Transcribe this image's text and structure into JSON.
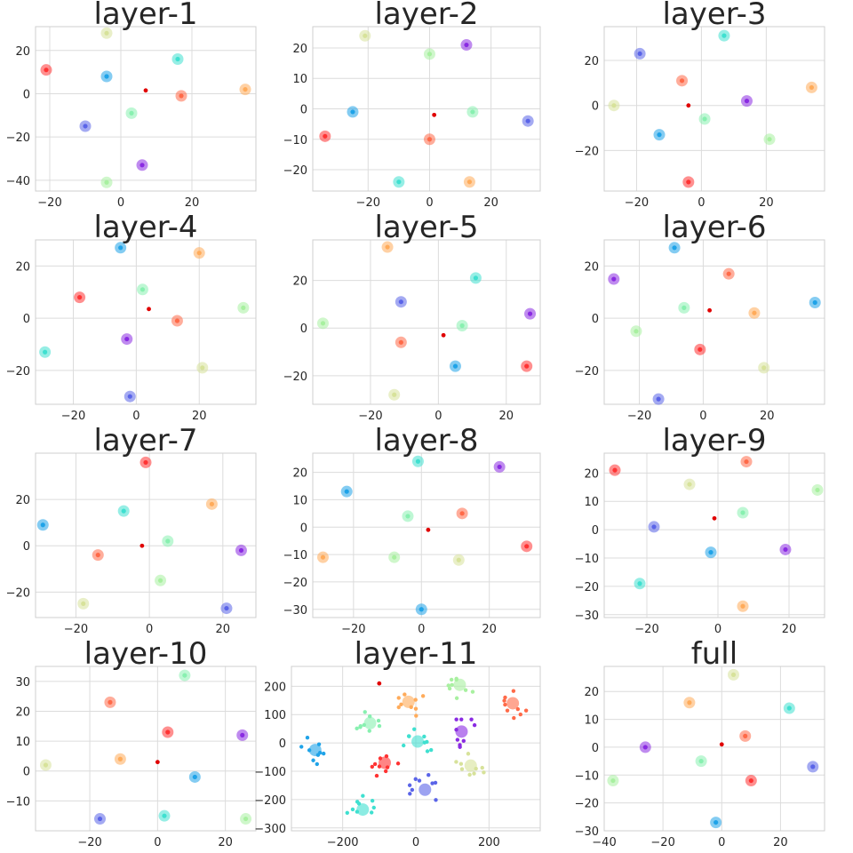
{
  "figure": {
    "description_type": "grid of scatter subplots",
    "rows": 4,
    "cols": 3
  },
  "chart_data": [
    {
      "type": "scatter",
      "title": "layer-1",
      "xlim": [
        -24,
        38
      ],
      "ylim": [
        -45,
        31
      ],
      "xticks": [
        -20,
        0,
        20
      ],
      "yticks": [
        20,
        0,
        -20,
        -40
      ],
      "grid": true,
      "points": [
        {
          "x": -21,
          "y": 11,
          "color": "#ff3333"
        },
        {
          "x": -4,
          "y": 28,
          "color": "#d7e29a"
        },
        {
          "x": -4,
          "y": 8,
          "color": "#1fa3e8"
        },
        {
          "x": 16,
          "y": 16,
          "color": "#3fe0d0"
        },
        {
          "x": 35,
          "y": 2,
          "color": "#ffab5a"
        },
        {
          "x": 17,
          "y": -1,
          "color": "#ff6a48"
        },
        {
          "x": 3,
          "y": -9,
          "color": "#88f0b0"
        },
        {
          "x": -10,
          "y": -15,
          "color": "#5a64e8"
        },
        {
          "x": 6,
          "y": -33,
          "color": "#8a2be2"
        },
        {
          "x": -4,
          "y": -41,
          "color": "#a8f0a0"
        }
      ],
      "center": {
        "x": 7,
        "y": 1.5
      }
    },
    {
      "type": "scatter",
      "title": "layer-2",
      "xlim": [
        -38,
        36
      ],
      "ylim": [
        -27,
        27
      ],
      "xticks": [
        -20,
        0,
        20
      ],
      "yticks": [
        20,
        10,
        0,
        -10,
        -20
      ],
      "grid": true,
      "points": [
        {
          "x": -21,
          "y": 24,
          "color": "#d7e29a"
        },
        {
          "x": 12,
          "y": 21,
          "color": "#8a2be2"
        },
        {
          "x": 0,
          "y": 18,
          "color": "#a8f0a0"
        },
        {
          "x": -25,
          "y": -1,
          "color": "#1fa3e8"
        },
        {
          "x": 14,
          "y": -1,
          "color": "#88f0b0"
        },
        {
          "x": 32,
          "y": -4,
          "color": "#5a64e8"
        },
        {
          "x": -34,
          "y": -9,
          "color": "#ff3333"
        },
        {
          "x": 0,
          "y": -10,
          "color": "#ff6a48"
        },
        {
          "x": -10,
          "y": -24,
          "color": "#3fe0d0"
        },
        {
          "x": 13,
          "y": -24,
          "color": "#ffab5a"
        }
      ],
      "center": {
        "x": 1.5,
        "y": -2
      }
    },
    {
      "type": "scatter",
      "title": "layer-3",
      "xlim": [
        -30,
        38
      ],
      "ylim": [
        -38,
        35
      ],
      "xticks": [
        -20,
        0,
        20
      ],
      "yticks": [
        20,
        0,
        -20
      ],
      "grid": true,
      "points": [
        {
          "x": 7,
          "y": 31,
          "color": "#3fe0d0"
        },
        {
          "x": -19,
          "y": 23,
          "color": "#5a64e8"
        },
        {
          "x": -6,
          "y": 11,
          "color": "#ff6a48"
        },
        {
          "x": 34,
          "y": 8,
          "color": "#ffab5a"
        },
        {
          "x": 14,
          "y": 2,
          "color": "#8a2be2"
        },
        {
          "x": -27,
          "y": 0,
          "color": "#d7e29a"
        },
        {
          "x": 1,
          "y": -6,
          "color": "#88f0b0"
        },
        {
          "x": -13,
          "y": -13,
          "color": "#1fa3e8"
        },
        {
          "x": 21,
          "y": -15,
          "color": "#a8f0a0"
        },
        {
          "x": -4,
          "y": -34,
          "color": "#ff3333"
        }
      ],
      "center": {
        "x": -4,
        "y": 0
      }
    },
    {
      "type": "scatter",
      "title": "layer-4",
      "xlim": [
        -32,
        38
      ],
      "ylim": [
        -33,
        30
      ],
      "xticks": [
        -20,
        0,
        20
      ],
      "yticks": [
        20,
        0,
        -20
      ],
      "grid": true,
      "points": [
        {
          "x": -5,
          "y": 27,
          "color": "#1fa3e8"
        },
        {
          "x": 20,
          "y": 25,
          "color": "#ffab5a"
        },
        {
          "x": 2,
          "y": 11,
          "color": "#88f0b0"
        },
        {
          "x": -18,
          "y": 8,
          "color": "#ff3333"
        },
        {
          "x": 34,
          "y": 4,
          "color": "#a8f0a0"
        },
        {
          "x": 13,
          "y": -1,
          "color": "#ff6a48"
        },
        {
          "x": -3,
          "y": -8,
          "color": "#8a2be2"
        },
        {
          "x": -29,
          "y": -13,
          "color": "#3fe0d0"
        },
        {
          "x": 21,
          "y": -19,
          "color": "#d7e29a"
        },
        {
          "x": -2,
          "y": -30,
          "color": "#5a64e8"
        }
      ],
      "center": {
        "x": 4,
        "y": 3.5
      }
    },
    {
      "type": "scatter",
      "title": "layer-5",
      "xlim": [
        -37,
        30
      ],
      "ylim": [
        -32,
        37
      ],
      "xticks": [
        -20,
        0,
        20
      ],
      "yticks": [
        20,
        0,
        -20
      ],
      "grid": true,
      "points": [
        {
          "x": -15,
          "y": 34,
          "color": "#ffab5a"
        },
        {
          "x": 11,
          "y": 21,
          "color": "#3fe0d0"
        },
        {
          "x": -11,
          "y": 11,
          "color": "#5a64e8"
        },
        {
          "x": 27,
          "y": 6,
          "color": "#8a2be2"
        },
        {
          "x": -34,
          "y": 2,
          "color": "#a8f0a0"
        },
        {
          "x": 7,
          "y": 1,
          "color": "#88f0b0"
        },
        {
          "x": -11,
          "y": -6,
          "color": "#ff6a48"
        },
        {
          "x": 5,
          "y": -16,
          "color": "#1fa3e8"
        },
        {
          "x": 26,
          "y": -16,
          "color": "#ff3333"
        },
        {
          "x": -13,
          "y": -28,
          "color": "#d7e29a"
        }
      ],
      "center": {
        "x": 1.5,
        "y": -3
      }
    },
    {
      "type": "scatter",
      "title": "layer-6",
      "xlim": [
        -31,
        38
      ],
      "ylim": [
        -33,
        30
      ],
      "xticks": [
        -20,
        0,
        20
      ],
      "yticks": [
        20,
        0,
        -20
      ],
      "grid": true,
      "points": [
        {
          "x": -9,
          "y": 27,
          "color": "#1fa3e8"
        },
        {
          "x": 8,
          "y": 17,
          "color": "#ff6a48"
        },
        {
          "x": -28,
          "y": 15,
          "color": "#8a2be2"
        },
        {
          "x": -6,
          "y": 4,
          "color": "#88f0b0"
        },
        {
          "x": 16,
          "y": 2,
          "color": "#ffab5a"
        },
        {
          "x": 35,
          "y": 6,
          "color": "#1fa3e8"
        },
        {
          "x": -21,
          "y": -5,
          "color": "#a8f0a0"
        },
        {
          "x": -1,
          "y": -12,
          "color": "#ff3333"
        },
        {
          "x": 19,
          "y": -19,
          "color": "#d7e29a"
        },
        {
          "x": -14,
          "y": -31,
          "color": "#5a64e8"
        }
      ],
      "center": {
        "x": 2,
        "y": 3
      }
    },
    {
      "type": "scatter",
      "title": "layer-7",
      "xlim": [
        -31,
        29
      ],
      "ylim": [
        -31,
        40
      ],
      "xticks": [
        -20,
        0,
        20
      ],
      "yticks": [
        20,
        0,
        -20
      ],
      "grid": true,
      "points": [
        {
          "x": -1,
          "y": 36,
          "color": "#ff3333"
        },
        {
          "x": 17,
          "y": 18,
          "color": "#ffab5a"
        },
        {
          "x": -7,
          "y": 15,
          "color": "#3fe0d0"
        },
        {
          "x": -29,
          "y": 9,
          "color": "#1fa3e8"
        },
        {
          "x": 5,
          "y": 2,
          "color": "#88f0b0"
        },
        {
          "x": 25,
          "y": -2,
          "color": "#8a2be2"
        },
        {
          "x": -14,
          "y": -4,
          "color": "#ff6a48"
        },
        {
          "x": 3,
          "y": -15,
          "color": "#a8f0a0"
        },
        {
          "x": -18,
          "y": -25,
          "color": "#d7e29a"
        },
        {
          "x": 21,
          "y": -27,
          "color": "#5a64e8"
        }
      ],
      "center": {
        "x": -2,
        "y": 0
      }
    },
    {
      "type": "scatter",
      "title": "layer-8",
      "xlim": [
        -32,
        35
      ],
      "ylim": [
        -33,
        27
      ],
      "xticks": [
        -20,
        0,
        20
      ],
      "yticks": [
        20,
        10,
        0,
        -10,
        -20,
        -30
      ],
      "grid": true,
      "points": [
        {
          "x": -1,
          "y": 24,
          "color": "#3fe0d0"
        },
        {
          "x": 23,
          "y": 22,
          "color": "#8a2be2"
        },
        {
          "x": -22,
          "y": 13,
          "color": "#1fa3e8"
        },
        {
          "x": -4,
          "y": 4,
          "color": "#88f0b0"
        },
        {
          "x": 12,
          "y": 5,
          "color": "#ff6a48"
        },
        {
          "x": 31,
          "y": -7,
          "color": "#ff3333"
        },
        {
          "x": -29,
          "y": -11,
          "color": "#ffab5a"
        },
        {
          "x": -8,
          "y": -11,
          "color": "#a8f0a0"
        },
        {
          "x": 11,
          "y": -12,
          "color": "#d7e29a"
        },
        {
          "x": 0,
          "y": -30,
          "color": "#1fa3e8"
        }
      ],
      "center": {
        "x": 2,
        "y": -1
      }
    },
    {
      "type": "scatter",
      "title": "layer-9",
      "xlim": [
        -32,
        30
      ],
      "ylim": [
        -31,
        27
      ],
      "xticks": [
        -20,
        0,
        20
      ],
      "yticks": [
        20,
        10,
        0,
        -10,
        -20,
        -30
      ],
      "grid": true,
      "points": [
        {
          "x": -29,
          "y": 21,
          "color": "#ff3333"
        },
        {
          "x": 8,
          "y": 24,
          "color": "#ff6a48"
        },
        {
          "x": -8,
          "y": 16,
          "color": "#d7e29a"
        },
        {
          "x": 28,
          "y": 14,
          "color": "#a8f0a0"
        },
        {
          "x": 7,
          "y": 6,
          "color": "#88f0b0"
        },
        {
          "x": -18,
          "y": 1,
          "color": "#5a64e8"
        },
        {
          "x": -2,
          "y": -8,
          "color": "#1fa3e8"
        },
        {
          "x": 19,
          "y": -7,
          "color": "#8a2be2"
        },
        {
          "x": -22,
          "y": -19,
          "color": "#3fe0d0"
        },
        {
          "x": 7,
          "y": -27,
          "color": "#ffab5a"
        }
      ],
      "center": {
        "x": -1,
        "y": 4
      }
    },
    {
      "type": "scatter",
      "title": "layer-10",
      "xlim": [
        -36,
        29
      ],
      "ylim": [
        -20,
        35
      ],
      "xticks": [
        -20,
        0,
        20
      ],
      "yticks": [
        30,
        20,
        10,
        0,
        -10
      ],
      "grid": true,
      "points": [
        {
          "x": 8,
          "y": 32,
          "color": "#88f0b0"
        },
        {
          "x": -14,
          "y": 23,
          "color": "#ff6a48"
        },
        {
          "x": 3,
          "y": 13,
          "color": "#ff3333"
        },
        {
          "x": 25,
          "y": 12,
          "color": "#8a2be2"
        },
        {
          "x": -11,
          "y": 4,
          "color": "#ffab5a"
        },
        {
          "x": -33,
          "y": 2,
          "color": "#d7e29a"
        },
        {
          "x": 11,
          "y": -2,
          "color": "#1fa3e8"
        },
        {
          "x": -17,
          "y": -16,
          "color": "#5a64e8"
        },
        {
          "x": 2,
          "y": -15,
          "color": "#3fe0d0"
        },
        {
          "x": 26,
          "y": -16,
          "color": "#a8f0a0"
        }
      ],
      "center": {
        "x": 0,
        "y": 3
      }
    },
    {
      "type": "scatter",
      "title": "layer-11",
      "xlim": [
        -340,
        340
      ],
      "ylim": [
        -310,
        270
      ],
      "xticks": [
        -200,
        0,
        200
      ],
      "yticks": [
        200,
        100,
        0,
        -100,
        -200,
        -300
      ],
      "grid": true,
      "clusters": [
        {
          "x": 120,
          "y": 205,
          "color": "#a8f0a0"
        },
        {
          "x": -20,
          "y": 145,
          "color": "#ffab5a"
        },
        {
          "x": 265,
          "y": 140,
          "color": "#ff6a48"
        },
        {
          "x": -125,
          "y": 70,
          "color": "#88f0b0"
        },
        {
          "x": 125,
          "y": 40,
          "color": "#8a2be2"
        },
        {
          "x": 5,
          "y": 5,
          "color": "#3fe0d0"
        },
        {
          "x": -275,
          "y": -25,
          "color": "#1fa3e8"
        },
        {
          "x": -85,
          "y": -70,
          "color": "#ff3333"
        },
        {
          "x": 150,
          "y": -80,
          "color": "#d7e29a"
        },
        {
          "x": 25,
          "y": -165,
          "color": "#5a64e8"
        },
        {
          "x": -145,
          "y": -235,
          "color": "#3fe0d0"
        }
      ],
      "center": {
        "x": -100,
        "y": 210
      }
    },
    {
      "type": "scatter",
      "title": "full",
      "xlim": [
        -40,
        35
      ],
      "ylim": [
        -30,
        29
      ],
      "xticks": [
        -40,
        -20,
        0,
        20
      ],
      "yticks": [
        20,
        10,
        0,
        -10,
        -20,
        -30
      ],
      "grid": true,
      "points": [
        {
          "x": 4,
          "y": 26,
          "color": "#d7e29a"
        },
        {
          "x": -11,
          "y": 16,
          "color": "#ffab5a"
        },
        {
          "x": 23,
          "y": 14,
          "color": "#3fe0d0"
        },
        {
          "x": 8,
          "y": 4,
          "color": "#ff6a48"
        },
        {
          "x": -26,
          "y": 0,
          "color": "#8a2be2"
        },
        {
          "x": -7,
          "y": -5,
          "color": "#88f0b0"
        },
        {
          "x": 31,
          "y": -7,
          "color": "#5a64e8"
        },
        {
          "x": -37,
          "y": -12,
          "color": "#a8f0a0"
        },
        {
          "x": 10,
          "y": -12,
          "color": "#ff3333"
        },
        {
          "x": -2,
          "y": -27,
          "color": "#1fa3e8"
        }
      ],
      "center": {
        "x": 0,
        "y": 1
      }
    }
  ]
}
